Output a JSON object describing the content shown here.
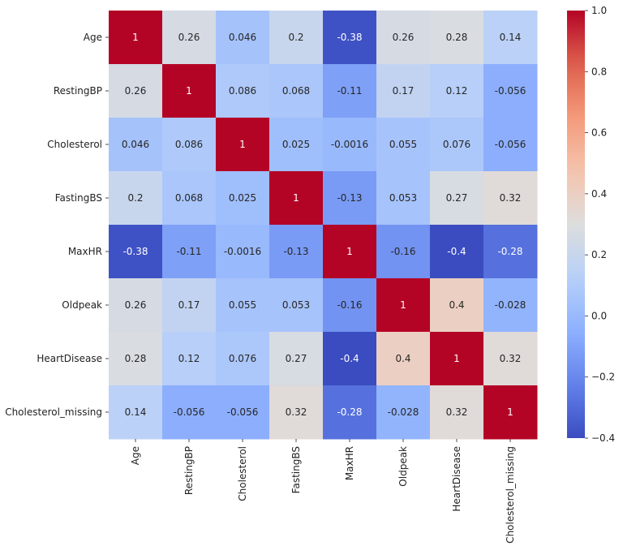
{
  "chart_data": {
    "type": "heatmap",
    "title": "",
    "xlabel": "",
    "ylabel": "",
    "rows": [
      "Age",
      "RestingBP",
      "Cholesterol",
      "FastingBS",
      "MaxHR",
      "Oldpeak",
      "HeartDisease",
      "Cholesterol_missing"
    ],
    "columns": [
      "Age",
      "RestingBP",
      "Cholesterol",
      "FastingBS",
      "MaxHR",
      "Oldpeak",
      "HeartDisease",
      "Cholesterol_missing"
    ],
    "values": [
      [
        1,
        0.26,
        0.046,
        0.2,
        -0.38,
        0.26,
        0.28,
        0.14
      ],
      [
        0.26,
        1,
        0.086,
        0.068,
        -0.11,
        0.17,
        0.12,
        -0.056
      ],
      [
        0.046,
        0.086,
        1,
        0.025,
        -0.0016,
        0.055,
        0.076,
        -0.056
      ],
      [
        0.2,
        0.068,
        0.025,
        1,
        -0.13,
        0.053,
        0.27,
        0.32
      ],
      [
        -0.38,
        -0.11,
        -0.0016,
        -0.13,
        1,
        -0.16,
        -0.4,
        -0.28
      ],
      [
        0.26,
        0.17,
        0.055,
        0.053,
        -0.16,
        1,
        0.4,
        -0.028
      ],
      [
        0.28,
        0.12,
        0.076,
        0.27,
        -0.4,
        0.4,
        1,
        0.32
      ],
      [
        0.14,
        -0.056,
        -0.056,
        0.32,
        -0.28,
        -0.028,
        0.32,
        1
      ]
    ],
    "colormap": "coolwarm",
    "vmin": -0.4,
    "vmax": 1.0,
    "colorbar_ticks": [
      "-0.4",
      "-0.2",
      "0.0",
      "0.2",
      "0.4",
      "0.6",
      "0.8",
      "1.0"
    ],
    "colorbar_tick_values": [
      -0.4,
      -0.2,
      0.0,
      0.2,
      0.4,
      0.6,
      0.8,
      1.0
    ],
    "annotations": true,
    "grid": false
  }
}
